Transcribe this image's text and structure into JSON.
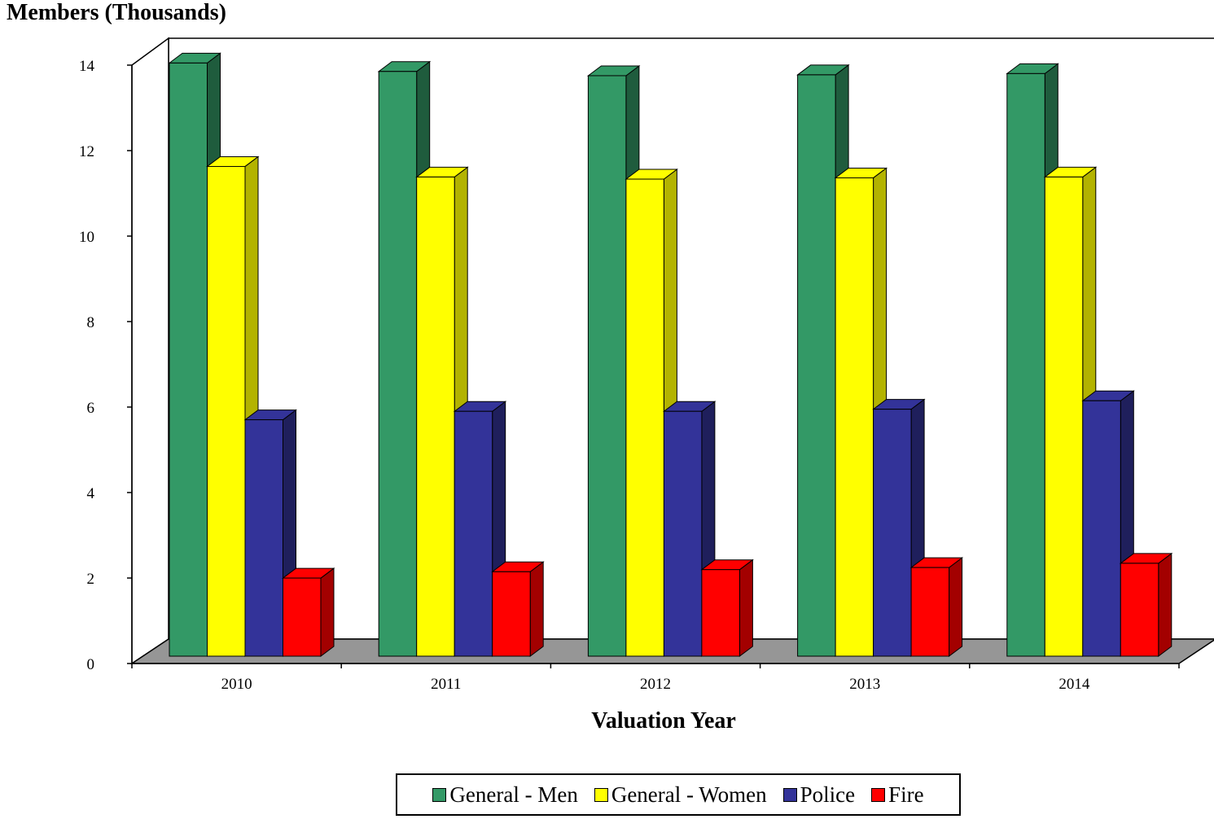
{
  "chart_data": {
    "type": "bar",
    "title": "",
    "ylabel": "Members (Thousands)",
    "xlabel": "Valuation Year",
    "categories": [
      "2010",
      "2011",
      "2012",
      "2013",
      "2014"
    ],
    "ylim": [
      0,
      14
    ],
    "yticks": [
      "0",
      "2",
      "4",
      "6",
      "8",
      "10",
      "12",
      "14"
    ],
    "series": [
      {
        "name": "General - Men",
        "values": [
          14.05,
          13.85,
          13.75,
          13.77,
          13.8
        ],
        "color": "#339966",
        "side": "#1f5c3d"
      },
      {
        "name": "General - Women",
        "values": [
          11.6,
          11.35,
          11.3,
          11.33,
          11.35
        ],
        "color": "#ffff00",
        "side": "#b3b300"
      },
      {
        "name": "Police",
        "values": [
          5.6,
          5.8,
          5.8,
          5.85,
          6.05
        ],
        "color": "#333399",
        "side": "#1f1f5c"
      },
      {
        "name": "Fire",
        "values": [
          1.85,
          2.0,
          2.05,
          2.1,
          2.2
        ],
        "color": "#ff0000",
        "side": "#a30000"
      }
    ],
    "legend_position": "bottom",
    "grid": false
  }
}
